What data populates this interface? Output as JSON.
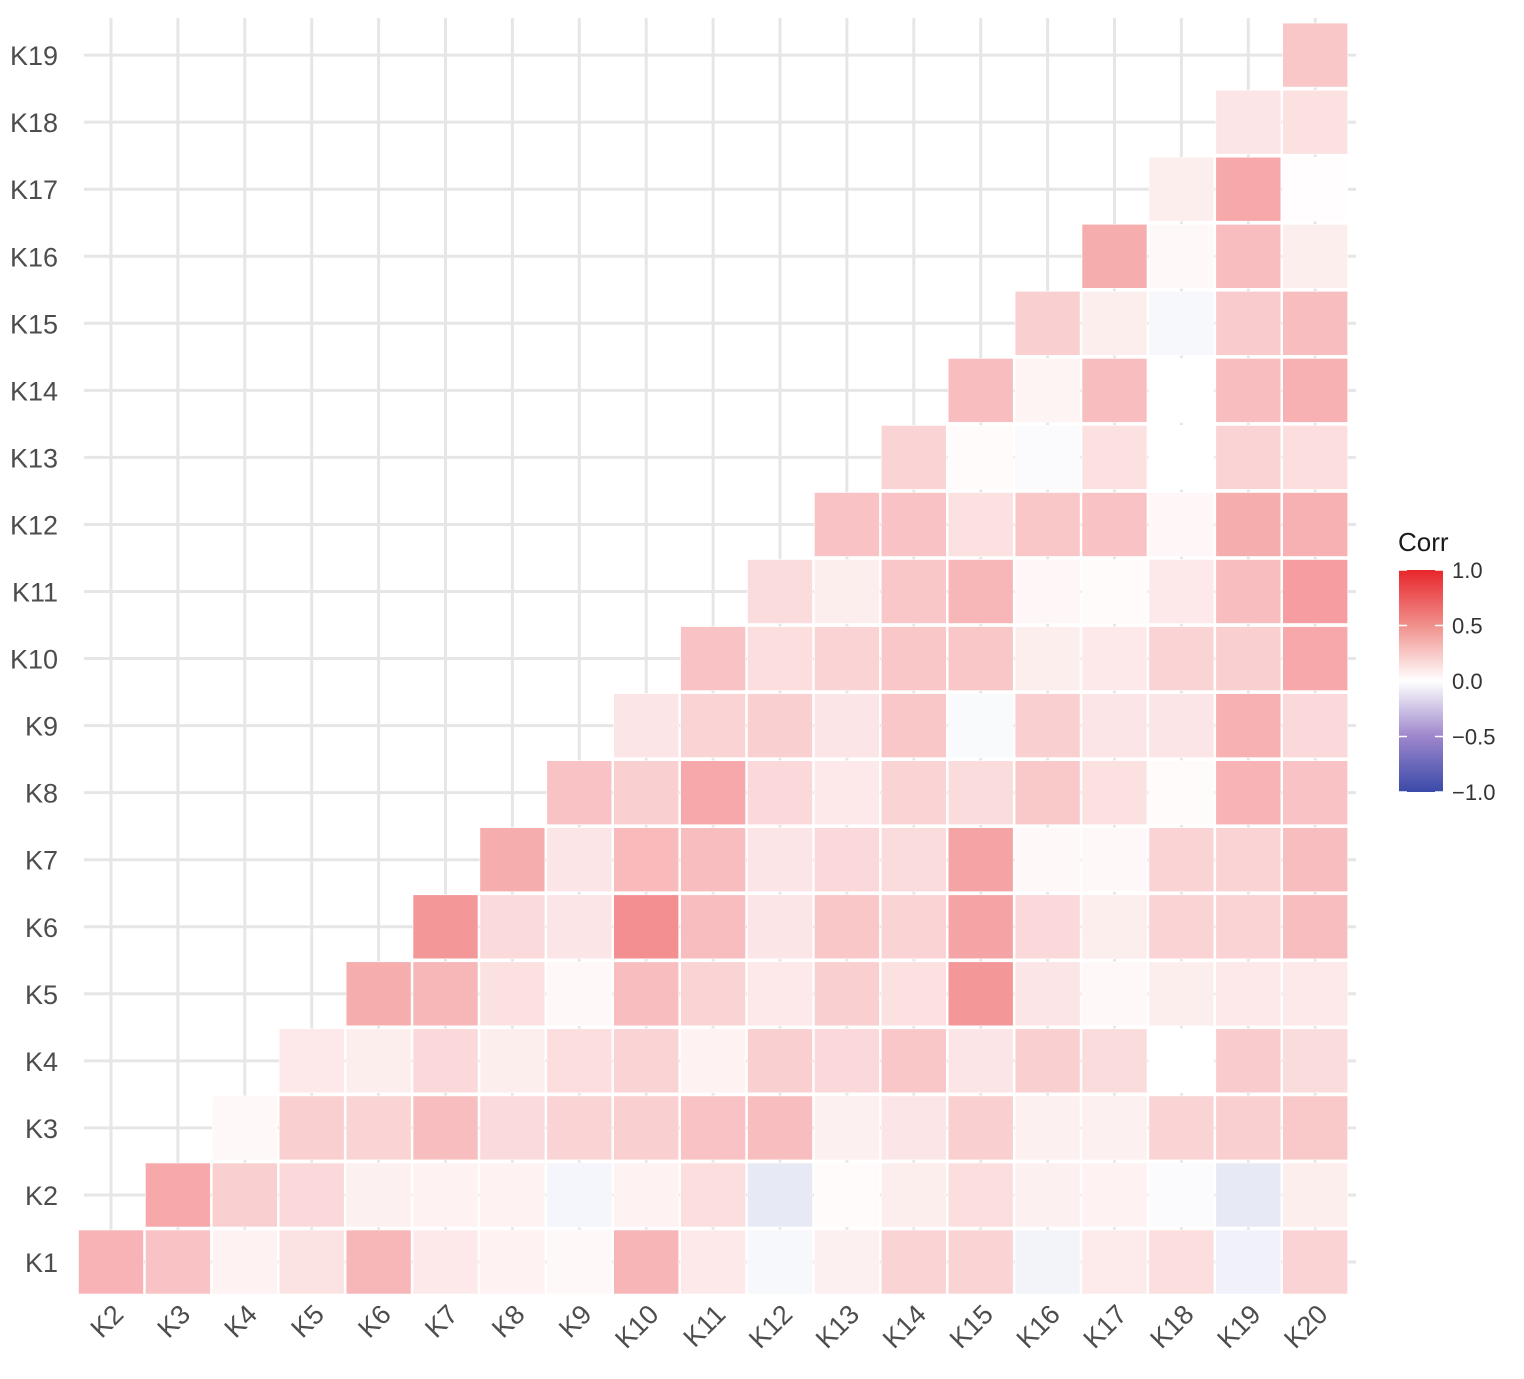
{
  "chart_data": {
    "type": "heatmap",
    "title": "",
    "xlabel": "",
    "ylabel": "",
    "x_categories": [
      "K2",
      "K3",
      "K4",
      "K5",
      "K6",
      "K7",
      "K8",
      "K9",
      "K10",
      "K11",
      "K12",
      "K13",
      "K14",
      "K15",
      "K16",
      "K17",
      "K18",
      "K19",
      "K20"
    ],
    "y_categories": [
      "K1",
      "K2",
      "K3",
      "K4",
      "K5",
      "K6",
      "K7",
      "K8",
      "K9",
      "K10",
      "K11",
      "K12",
      "K13",
      "K14",
      "K15",
      "K16",
      "K17",
      "K18",
      "K19"
    ],
    "matrix_shape": "lower-triangular correlation matrix (upper-left empty)",
    "grid": true,
    "colors": {
      "high": "#e8262b",
      "mid": "#ffffff",
      "low": "#3a4aa8"
    },
    "legend": {
      "title": "Corr",
      "position": "right",
      "labels": [
        "1.0",
        "0.5",
        "0.0",
        "−0.5",
        "−1.0"
      ],
      "values": [
        1.0,
        0.5,
        0.0,
        -0.5,
        -1.0
      ]
    },
    "rows": [
      {
        "y": "K1",
        "values": [
          0.35,
          0.28,
          0.06,
          0.13,
          0.33,
          0.1,
          0.06,
          0.03,
          0.34,
          0.1,
          -0.04,
          0.07,
          0.2,
          0.2,
          -0.06,
          0.09,
          0.15,
          -0.07,
          0.2
        ]
      },
      {
        "y": "K2",
        "values": [
          null,
          0.4,
          0.22,
          0.18,
          0.07,
          0.06,
          0.06,
          -0.05,
          0.06,
          0.15,
          -0.12,
          0.02,
          0.08,
          0.15,
          0.07,
          0.06,
          -0.02,
          -0.12,
          0.08
        ]
      },
      {
        "y": "K3",
        "values": [
          null,
          null,
          0.03,
          0.22,
          0.2,
          0.3,
          0.17,
          0.2,
          0.22,
          0.28,
          0.3,
          0.07,
          0.12,
          0.22,
          0.07,
          0.07,
          0.2,
          0.22,
          0.25
        ]
      },
      {
        "y": "K4",
        "values": [
          null,
          null,
          null,
          0.1,
          0.08,
          0.18,
          0.08,
          0.15,
          0.2,
          0.06,
          0.22,
          0.18,
          0.26,
          0.12,
          0.22,
          0.16,
          0.0,
          0.24,
          0.16
        ]
      },
      {
        "y": "K5",
        "values": [
          null,
          null,
          null,
          null,
          0.38,
          0.33,
          0.14,
          0.03,
          0.3,
          0.2,
          0.1,
          0.22,
          0.14,
          0.48,
          0.12,
          0.03,
          0.08,
          0.1,
          0.1
        ]
      },
      {
        "y": "K6",
        "values": [
          null,
          null,
          null,
          null,
          null,
          0.48,
          0.17,
          0.12,
          0.52,
          0.3,
          0.12,
          0.26,
          0.2,
          0.42,
          0.18,
          0.08,
          0.2,
          0.2,
          0.3
        ]
      },
      {
        "y": "K7",
        "values": [
          null,
          null,
          null,
          null,
          null,
          null,
          0.38,
          0.12,
          0.32,
          0.3,
          0.12,
          0.18,
          0.16,
          0.42,
          0.03,
          0.03,
          0.2,
          0.2,
          0.3
        ]
      },
      {
        "y": "K8",
        "values": [
          null,
          null,
          null,
          null,
          null,
          null,
          null,
          0.28,
          0.22,
          0.4,
          0.18,
          0.1,
          0.2,
          0.16,
          0.25,
          0.14,
          0.02,
          0.35,
          0.28
        ]
      },
      {
        "y": "K9",
        "values": [
          null,
          null,
          null,
          null,
          null,
          null,
          null,
          null,
          0.12,
          0.2,
          0.22,
          0.12,
          0.26,
          -0.03,
          0.22,
          0.12,
          0.12,
          0.36,
          0.18
        ]
      },
      {
        "y": "K10",
        "values": [
          null,
          null,
          null,
          null,
          null,
          null,
          null,
          null,
          null,
          0.28,
          0.15,
          0.2,
          0.26,
          0.26,
          0.08,
          0.1,
          0.2,
          0.22,
          0.4
        ]
      },
      {
        "y": "K11",
        "values": [
          null,
          null,
          null,
          null,
          null,
          null,
          null,
          null,
          null,
          null,
          0.16,
          0.08,
          0.26,
          0.33,
          0.04,
          0.02,
          0.1,
          0.3,
          0.45
        ]
      },
      {
        "y": "K12",
        "values": [
          null,
          null,
          null,
          null,
          null,
          null,
          null,
          null,
          null,
          null,
          null,
          0.28,
          0.28,
          0.14,
          0.26,
          0.28,
          0.04,
          0.38,
          0.36
        ]
      },
      {
        "y": "K13",
        "values": [
          null,
          null,
          null,
          null,
          null,
          null,
          null,
          null,
          null,
          null,
          null,
          null,
          0.2,
          0.02,
          -0.02,
          0.14,
          0.0,
          0.2,
          0.15
        ]
      },
      {
        "y": "K14",
        "values": [
          null,
          null,
          null,
          null,
          null,
          null,
          null,
          null,
          null,
          null,
          null,
          null,
          null,
          0.3,
          0.05,
          0.3,
          0.0,
          0.3,
          0.36
        ]
      },
      {
        "y": "K15",
        "values": [
          null,
          null,
          null,
          null,
          null,
          null,
          null,
          null,
          null,
          null,
          null,
          null,
          null,
          null,
          0.22,
          0.08,
          -0.04,
          0.24,
          0.3
        ]
      },
      {
        "y": "K16",
        "values": [
          null,
          null,
          null,
          null,
          null,
          null,
          null,
          null,
          null,
          null,
          null,
          null,
          null,
          null,
          null,
          0.38,
          0.03,
          0.3,
          0.08
        ]
      },
      {
        "y": "K17",
        "values": [
          null,
          null,
          null,
          null,
          null,
          null,
          null,
          null,
          null,
          null,
          null,
          null,
          null,
          null,
          null,
          null,
          0.08,
          0.4,
          0.01
        ]
      },
      {
        "y": "K18",
        "values": [
          null,
          null,
          null,
          null,
          null,
          null,
          null,
          null,
          null,
          null,
          null,
          null,
          null,
          null,
          null,
          null,
          null,
          0.12,
          0.14
        ]
      },
      {
        "y": "K19",
        "values": [
          null,
          null,
          null,
          null,
          null,
          null,
          null,
          null,
          null,
          null,
          null,
          null,
          null,
          null,
          null,
          null,
          null,
          null,
          0.26
        ]
      }
    ]
  }
}
